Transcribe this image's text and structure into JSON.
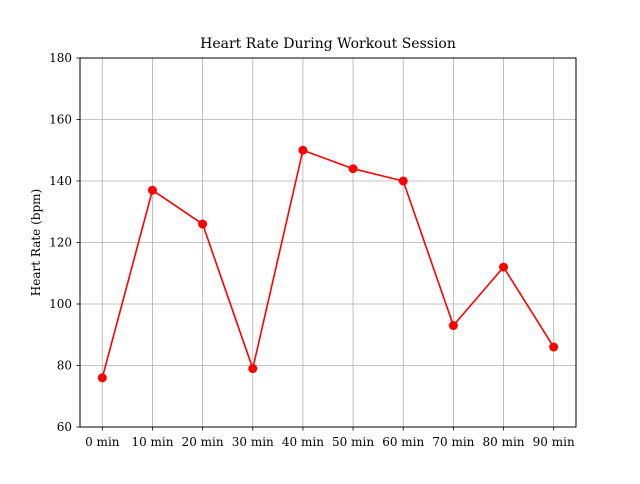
{
  "chart_data": {
    "type": "line",
    "title": "Heart Rate During Workout Session",
    "xlabel": "",
    "ylabel": "Heart Rate (bpm)",
    "categories": [
      "0 min",
      "10 min",
      "20 min",
      "30 min",
      "40 min",
      "50 min",
      "60 min",
      "70 min",
      "80 min",
      "90 min"
    ],
    "series": [
      {
        "values": [
          76,
          137,
          126,
          79,
          150,
          144,
          140,
          93,
          112,
          86
        ],
        "color": "#ff0000",
        "marker": "circle"
      }
    ],
    "ylim": [
      60,
      180
    ],
    "yticks": [
      "60",
      "80",
      "100",
      "120",
      "140",
      "160",
      "180"
    ],
    "grid": true
  }
}
